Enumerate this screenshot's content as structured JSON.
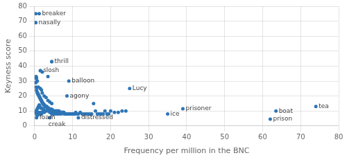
{
  "chart_data": {
    "type": "scatter",
    "xlabel": "Frequency per million in the BNC",
    "ylabel": "Keyness score",
    "xlim": [
      0,
      80
    ],
    "ylim": [
      0,
      80
    ],
    "xticks": [
      0,
      10,
      20,
      30,
      40,
      50,
      60,
      70,
      80
    ],
    "yticks": [
      0,
      10,
      20,
      30,
      40,
      50,
      60,
      70,
      80
    ],
    "grid": true,
    "color": "#2e75b6",
    "x": [
      0.3,
      0.4,
      0.5,
      0.6,
      0.7,
      0.8,
      0.9,
      1.0,
      1.1,
      1.2,
      1.3,
      1.4,
      1.5,
      1.6,
      1.7,
      1.8,
      1.9,
      2.0,
      2.1,
      2.2,
      2.3,
      2.4,
      2.5,
      2.6,
      2.7,
      2.8,
      2.9,
      3.0,
      3.1,
      3.2,
      3.3,
      3.4,
      3.5,
      3.6,
      3.7,
      3.8,
      3.9,
      4.0,
      4.1,
      4.2,
      4.3,
      4.4,
      4.5,
      4.6,
      4.7,
      4.8,
      4.9,
      5.0,
      5.1,
      5.2,
      5.3,
      5.4,
      5.5,
      5.6,
      5.7,
      5.8,
      5.9,
      6.0,
      6.1,
      6.2,
      6.3,
      6.4,
      6.5,
      6.6,
      6.7,
      6.8,
      6.9,
      7.0,
      7.1,
      7.2,
      7.3,
      7.4,
      7.5,
      7.6,
      7.7,
      7.8,
      7.9,
      8.0,
      8.1,
      8.2,
      8.3,
      8.4,
      8.5,
      8.6,
      8.7,
      8.8,
      8.9,
      9.0,
      9.1,
      9.2,
      9.3,
      9.4,
      9.5,
      9.6,
      9.7,
      9.8,
      9.9,
      10.0,
      10.1,
      10.2,
      10.5,
      10.8,
      11.0,
      11.5,
      12.0,
      12.5,
      13.0,
      13.5,
      14.0,
      14.5,
      15.0,
      15.5,
      16.0,
      16.5,
      17.0,
      17.5,
      18.0,
      18.5,
      19.0,
      19.5,
      20.0,
      21.0,
      22.0,
      23.0,
      24.0,
      0.3,
      0.4,
      0.5,
      0.6,
      0.7,
      1.5,
      1.8,
      2.0,
      2.5,
      3.0,
      3.5,
      4.0,
      4.5,
      0.2,
      1.0,
      2.0,
      3.5,
      0.3,
      0.2,
      4.5,
      1.5,
      0.3,
      0.5,
      0.6,
      0.7,
      0.8,
      1.0,
      1.2,
      1.5,
      1.8,
      2.0,
      2.5,
      3.0,
      3.5,
      4.0,
      4.5,
      5.0,
      5.5,
      6.0,
      6.5,
      7.0,
      0.4,
      0.6,
      0.8,
      1.0,
      1.2,
      1.4,
      1.6,
      1.8,
      2.2,
      2.4
    ],
    "values": [
      29,
      26,
      24,
      23,
      22,
      22,
      21,
      21,
      20,
      20,
      19,
      19,
      18,
      18,
      17,
      17,
      16,
      16,
      15,
      15,
      15,
      14,
      14,
      14,
      13,
      13,
      13,
      13,
      13,
      13,
      12,
      12,
      12,
      12,
      12,
      11,
      11,
      11,
      11,
      11,
      11,
      11,
      11,
      11,
      10,
      10,
      10,
      10,
      10,
      10,
      10,
      10,
      10,
      10,
      10,
      10,
      10,
      10,
      10,
      10,
      10,
      10,
      9,
      9,
      9,
      9,
      9,
      9,
      9,
      9,
      9,
      9,
      9,
      9,
      9,
      8,
      8,
      8,
      8,
      8,
      8,
      8,
      8,
      8,
      8,
      8,
      8,
      8,
      8,
      8,
      8,
      8,
      8,
      8,
      8,
      8,
      8,
      8,
      8,
      8,
      8,
      9,
      8,
      8,
      9,
      8,
      8,
      8,
      8,
      8,
      8,
      15,
      10,
      8,
      8,
      8,
      8,
      10,
      8,
      8,
      10,
      9,
      9,
      10,
      10,
      32,
      33,
      32,
      30,
      30,
      25,
      24,
      22,
      20,
      19,
      17,
      16,
      15,
      29,
      26,
      36,
      33,
      75,
      69,
      43,
      37,
      9,
      8,
      7,
      7,
      8,
      9,
      8,
      9,
      8,
      9,
      9,
      10,
      10,
      9,
      8,
      8,
      8,
      8,
      8,
      8,
      10,
      11,
      12,
      13,
      14,
      13,
      12,
      12,
      11,
      11
    ],
    "annotations": [
      {
        "x": 1.2,
        "y": 75,
        "text": "breaker"
      },
      {
        "x": 0.3,
        "y": 69,
        "text": "nasally"
      },
      {
        "x": 4.5,
        "y": 43,
        "text": "thrill"
      },
      {
        "x": 1.5,
        "y": 37,
        "text": "slosh"
      },
      {
        "x": 9.0,
        "y": 30,
        "text": "balloon"
      },
      {
        "x": 25,
        "y": 25,
        "text": "Lucy"
      },
      {
        "x": 8.5,
        "y": 20,
        "text": "agony"
      },
      {
        "x": 0.5,
        "y": 5.5,
        "text": "foam"
      },
      {
        "x": 4.0,
        "y": 5.5,
        "text": "creak"
      },
      {
        "x": 11.5,
        "y": 5.5,
        "text": "distressed"
      },
      {
        "x": 39,
        "y": 11.5,
        "text": "prisoner"
      },
      {
        "x": 35,
        "y": 8,
        "text": "ice"
      },
      {
        "x": 63.5,
        "y": 10,
        "text": "boat"
      },
      {
        "x": 62,
        "y": 4.5,
        "text": "prison"
      },
      {
        "x": 74,
        "y": 13,
        "text": "tea"
      }
    ]
  }
}
